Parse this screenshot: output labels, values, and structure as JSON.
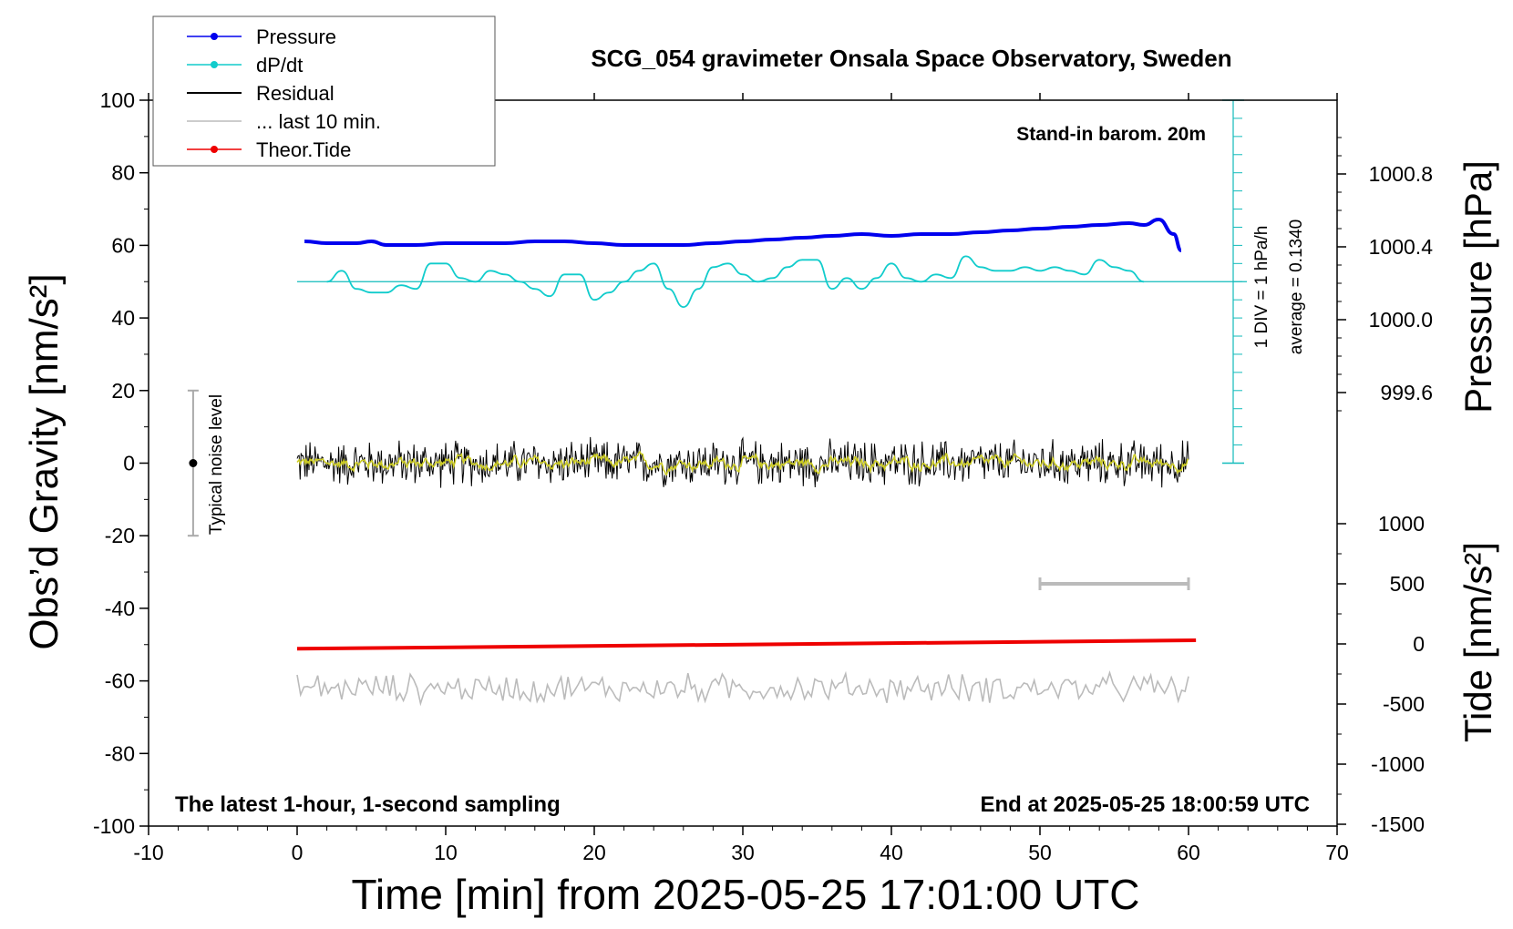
{
  "chart_data": {
    "type": "line",
    "title": "SCG_054 gravimeter Onsala Space Observatory, Sweden",
    "xlabel": "Time [min] from 2025-05-25 17:01:00 UTC",
    "ylabel_left": "Obs’d Gravity [nm/s²]",
    "ylabel_right_top": "Pressure [hPa]",
    "ylabel_right_bottom": "Tide [nm/s²]",
    "xlim": [
      -10,
      70
    ],
    "ylim": [
      -100,
      100
    ],
    "pressure_ylim": [
      999.4,
      1001.1
    ],
    "tide_ylim": [
      -1500,
      1000
    ],
    "x_ticks": [
      "-10",
      "0",
      "10",
      "20",
      "30",
      "40",
      "50",
      "60",
      "70"
    ],
    "y_ticks": [
      "100",
      "80",
      "60",
      "40",
      "20",
      "0",
      "-20",
      "-40",
      "-60",
      "-80",
      "-100"
    ],
    "pressure_ticks": [
      "1000.8",
      "1000.4",
      "1000.0",
      "999.6"
    ],
    "tide_ticks": [
      "1000",
      "500",
      "0",
      "-500",
      "-1000",
      "-1500"
    ],
    "annotations": {
      "barometer": "Stand-in barom. 20m",
      "div_label": "1 DIV = 1 hPa/h",
      "average_label": "average = 0.1340",
      "noise_label": "Typical noise level",
      "bottom_left": "The latest 1-hour, 1-second sampling",
      "bottom_right": "End at 2025-05-25 18:00:59 UTC"
    },
    "legend": {
      "position": "top-left",
      "entries": [
        {
          "label": "Pressure",
          "color": "#0000ee",
          "marker": true
        },
        {
          "label": "dP/dt",
          "color": "#11cccc",
          "marker": true
        },
        {
          "label": "Residual",
          "color": "#000000",
          "marker": false
        },
        {
          "label": "... last 10 min.",
          "color": "#bbbbbb",
          "marker": false
        },
        {
          "label": "Theor.Tide",
          "color": "#ee0000",
          "marker": true
        }
      ]
    },
    "series": [
      {
        "name": "Pressure",
        "axis": "pressure",
        "color": "#0000ee",
        "x": [
          0.5,
          2,
          4,
          5,
          6,
          8,
          10,
          12,
          14,
          16,
          18,
          20,
          22,
          24,
          26,
          28,
          30,
          32,
          34,
          36,
          38,
          40,
          42,
          44,
          46,
          48,
          50,
          52,
          54,
          56,
          57,
          58,
          59,
          59.5
        ],
        "y": [
          1000.43,
          1000.42,
          1000.42,
          1000.43,
          1000.41,
          1000.41,
          1000.42,
          1000.42,
          1000.42,
          1000.43,
          1000.43,
          1000.42,
          1000.41,
          1000.41,
          1000.41,
          1000.42,
          1000.43,
          1000.44,
          1000.45,
          1000.46,
          1000.47,
          1000.46,
          1000.47,
          1000.47,
          1000.48,
          1000.49,
          1000.5,
          1000.51,
          1000.52,
          1000.53,
          1000.52,
          1000.55,
          1000.47,
          1000.38
        ]
      },
      {
        "name": "dP/dt",
        "axis": "gravity",
        "color": "#11cccc",
        "x": [
          2,
          3,
          4,
          5,
          6,
          7,
          8,
          9,
          10,
          11,
          12,
          13,
          14,
          15,
          16,
          17,
          18,
          19,
          20,
          21,
          22,
          23,
          24,
          25,
          26,
          27,
          28,
          29,
          30,
          31,
          32,
          33,
          34,
          35,
          36,
          37,
          38,
          39,
          40,
          41,
          42,
          43,
          44,
          45,
          46,
          47,
          48,
          49,
          50,
          51,
          52,
          53,
          54,
          55,
          56,
          57
        ],
        "y": [
          50,
          53,
          48,
          47,
          47,
          49,
          48,
          55,
          55,
          51,
          50,
          53,
          52,
          50,
          48,
          46,
          52,
          52,
          45,
          47,
          50,
          53,
          55,
          48,
          43,
          48,
          54,
          55,
          52,
          50,
          51,
          54,
          56,
          56,
          48,
          51,
          48,
          51,
          55,
          51,
          50,
          52,
          51,
          57,
          54,
          53,
          53,
          54,
          53,
          54,
          53,
          52,
          56,
          54,
          53,
          50
        ]
      },
      {
        "name": "Residual",
        "axis": "gravity",
        "color": "#000000",
        "x": [
          0,
          60
        ],
        "y_center": 0,
        "y_amplitude": 5
      },
      {
        "name": "... last 10 min.",
        "axis": "gravity",
        "color": "#bbbbbb",
        "x": [
          0,
          60
        ],
        "y_center": -62,
        "y_amplitude": 4
      },
      {
        "name": "Theor.Tide",
        "axis": "tide",
        "color": "#ee0000",
        "x": [
          0,
          60.5
        ],
        "y": [
          -40,
          30
        ]
      }
    ]
  }
}
